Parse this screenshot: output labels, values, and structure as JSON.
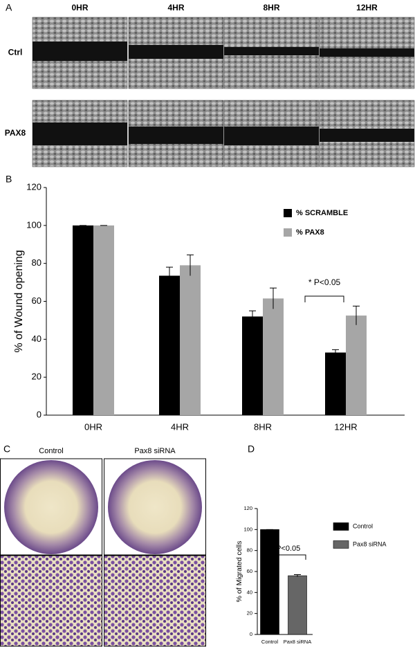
{
  "panels": {
    "a": {
      "letter": "A",
      "columns": [
        "0HR",
        "4HR",
        "8HR",
        "12HR"
      ],
      "rows": [
        "Ctrl",
        "PAX8"
      ]
    },
    "b": {
      "letter": "B"
    },
    "c": {
      "letter": "C",
      "columns": [
        "Control",
        "Pax8 siRNA"
      ]
    },
    "d": {
      "letter": "D"
    }
  },
  "chart_data": [
    {
      "type": "bar",
      "ylabel": "% of Wound opening",
      "categories": [
        "0HR",
        "4HR",
        "8HR",
        "12HR"
      ],
      "series": [
        {
          "name": "% SCRAMBLE",
          "color": "#000000",
          "values": [
            100,
            73.5,
            52,
            33
          ],
          "errors": [
            0,
            4.5,
            3,
            1.5
          ]
        },
        {
          "name": "% PAX8",
          "color": "#a6a6a6",
          "values": [
            100,
            79,
            61.5,
            52.5
          ],
          "errors": [
            0,
            5.5,
            5.5,
            5
          ]
        }
      ],
      "ylim": [
        0,
        120
      ],
      "yticks": [
        0,
        20,
        40,
        60,
        80,
        100,
        120
      ],
      "annotation": "* P<0.05",
      "legend": "upper right",
      "grid": false
    },
    {
      "type": "bar",
      "ylabel": "% of Migrated cells",
      "categories": [
        "Control",
        "Pax8 siRNA"
      ],
      "values": [
        100,
        56
      ],
      "errors": [
        0,
        1
      ],
      "colors": [
        "#000000",
        "#666666"
      ],
      "ylim": [
        0,
        120
      ],
      "yticks": [
        0,
        20,
        40,
        60,
        80,
        100,
        120
      ],
      "annotation": "* P<0.05",
      "legend": "outside right",
      "grid": false
    }
  ]
}
